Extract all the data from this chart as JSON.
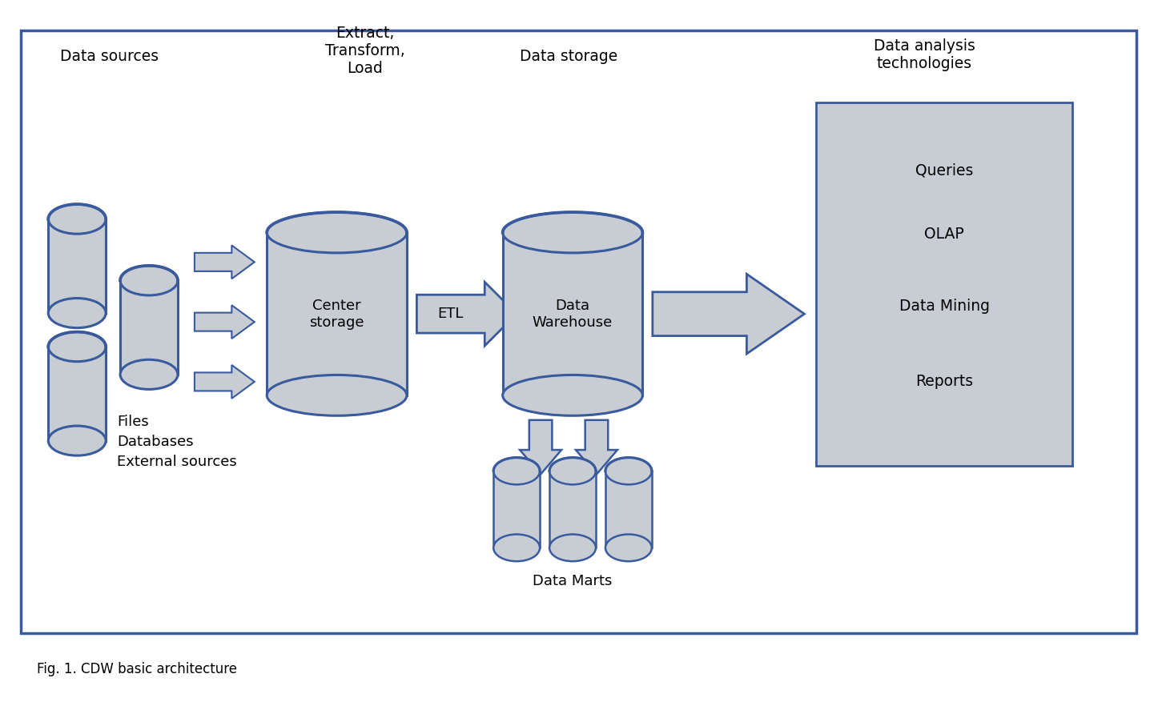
{
  "fig_width": 14.56,
  "fig_height": 8.97,
  "bg_color": "#ffffff",
  "border_color": "#3a5a9e",
  "cylinder_fill": "#c8cdd4",
  "cylinder_edge": "#3a5a9e",
  "arrow_fill": "#c8cdd4",
  "arrow_edge": "#3a5a9e",
  "analysis_box_fill": "#c8cdd4",
  "analysis_box_edge": "#3a5a9e",
  "text_color": "#000000",
  "caption": "Fig. 1. CDW basic architecture",
  "section_labels": {
    "data_sources": "Data sources",
    "etl": "Extract,\nTransform,\nLoad",
    "data_storage": "Data storage",
    "data_analysis": "Data analysis\ntechnologies"
  },
  "analysis_items": [
    "Queries",
    "OLAP",
    "Data Mining",
    "Reports"
  ],
  "bottom_labels": [
    "Files\nDatabases\nExternal sources",
    "Data Marts"
  ]
}
